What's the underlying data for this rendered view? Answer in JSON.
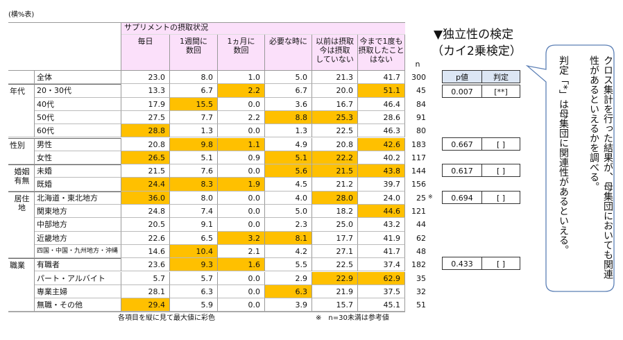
{
  "note_top": "(横%表)",
  "table": {
    "header_group": "サプリメントの摂取状況",
    "columns": [
      "毎日",
      "1週間に\n数回",
      "1ヵ月に\n数回",
      "必要な時に",
      "以前は摂取\n今は摂取\nしていない",
      "今まで1度も\n摂取したこと\nはない"
    ],
    "n_label": "n",
    "total": {
      "label": "全体",
      "values": [
        "23.0",
        "8.0",
        "1.0",
        "5.0",
        "21.3",
        "41.7"
      ],
      "n": "300",
      "highlight": []
    },
    "groups": [
      {
        "name": "年代",
        "rows": [
          {
            "label": "20・30代",
            "values": [
              "13.3",
              "6.7",
              "2.2",
              "6.7",
              "20.0",
              "51.1"
            ],
            "n": "45",
            "highlight": [
              2,
              5
            ]
          },
          {
            "label": "40代",
            "values": [
              "17.9",
              "15.5",
              "0.0",
              "3.6",
              "16.7",
              "46.4"
            ],
            "n": "84",
            "highlight": [
              1
            ]
          },
          {
            "label": "50代",
            "values": [
              "27.5",
              "7.7",
              "2.2",
              "8.8",
              "25.3",
              "28.6"
            ],
            "n": "91",
            "highlight": [
              3,
              4
            ]
          },
          {
            "label": "60代",
            "values": [
              "28.8",
              "1.3",
              "0.0",
              "1.3",
              "22.5",
              "46.3"
            ],
            "n": "80",
            "highlight": [
              0
            ]
          }
        ]
      },
      {
        "name": "性別",
        "rows": [
          {
            "label": "男性",
            "values": [
              "20.8",
              "9.8",
              "1.1",
              "4.9",
              "20.8",
              "42.6"
            ],
            "n": "183",
            "highlight": [
              1,
              2,
              5
            ]
          },
          {
            "label": "女性",
            "values": [
              "26.5",
              "5.1",
              "0.9",
              "5.1",
              "22.2",
              "40.2"
            ],
            "n": "117",
            "highlight": [
              0,
              3,
              4
            ]
          }
        ]
      },
      {
        "name": "婚姻\n有無",
        "rows": [
          {
            "label": "未婚",
            "values": [
              "21.5",
              "7.6",
              "0.0",
              "5.6",
              "21.5",
              "43.8"
            ],
            "n": "144",
            "highlight": [
              3,
              4,
              5
            ]
          },
          {
            "label": "既婚",
            "values": [
              "24.4",
              "8.3",
              "1.9",
              "4.5",
              "21.2",
              "39.7"
            ],
            "n": "156",
            "highlight": [
              0,
              1,
              2
            ]
          }
        ]
      },
      {
        "name": "居住\n地",
        "rows": [
          {
            "label": "北海道・東北地方",
            "values": [
              "36.0",
              "8.0",
              "0.0",
              "4.0",
              "28.0",
              "24.0"
            ],
            "n": "25",
            "mark": "※",
            "highlight": [
              0,
              4
            ]
          },
          {
            "label": "関東地方",
            "values": [
              "24.8",
              "7.4",
              "0.0",
              "5.0",
              "18.2",
              "44.6"
            ],
            "n": "121",
            "highlight": [
              5
            ]
          },
          {
            "label": "中部地方",
            "values": [
              "20.5",
              "9.1",
              "0.0",
              "2.3",
              "25.0",
              "43.2"
            ],
            "n": "44",
            "highlight": []
          },
          {
            "label": "近畿地方",
            "values": [
              "22.6",
              "6.5",
              "3.2",
              "8.1",
              "17.7",
              "41.9"
            ],
            "n": "62",
            "highlight": [
              2,
              3
            ]
          },
          {
            "label": "四国・中国・九州地方・沖縄",
            "values": [
              "14.6",
              "10.4",
              "2.1",
              "4.2",
              "27.1",
              "41.7"
            ],
            "n": "48",
            "highlight": [
              1
            ]
          }
        ]
      },
      {
        "name": "職業",
        "rows": [
          {
            "label": "有職者",
            "values": [
              "23.6",
              "9.3",
              "1.6",
              "5.5",
              "22.5",
              "37.4"
            ],
            "n": "182",
            "highlight": [
              1,
              2
            ]
          },
          {
            "label": "パート・アルバイト",
            "values": [
              "5.7",
              "5.7",
              "0.0",
              "2.9",
              "22.9",
              "62.9"
            ],
            "n": "35",
            "highlight": [
              4,
              5
            ]
          },
          {
            "label": "専業主婦",
            "values": [
              "28.1",
              "6.3",
              "0.0",
              "6.3",
              "21.9",
              "37.5"
            ],
            "n": "32",
            "highlight": [
              3
            ]
          },
          {
            "label": "無職・その他",
            "values": [
              "29.4",
              "5.9",
              "0.0",
              "3.9",
              "15.7",
              "45.1"
            ],
            "n": "51",
            "highlight": [
              0
            ]
          }
        ]
      }
    ],
    "highlight_color": "#ffc000"
  },
  "footnotes": [
    "各項目を縦に見て最大値に彩色",
    "※　n=30未満は参考値"
  ],
  "test": {
    "title": "▼独立性の検定",
    "subtitle": "（カイ2乗検定）",
    "headers": [
      "p値",
      "判定"
    ],
    "rows": [
      [
        "0.007",
        "[**]"
      ],
      [
        "0.667",
        "[ ]"
      ],
      [
        "0.617",
        "[ ]"
      ],
      [
        "0.694",
        "[ ]"
      ],
      [
        "0.433",
        "[ ]"
      ]
    ]
  },
  "callout": [
    "クロス集計を行った結果が、母集団においても関連性があるといえるかを調べる。",
    "判定「*」は母集団に関連性があるといえる。"
  ]
}
